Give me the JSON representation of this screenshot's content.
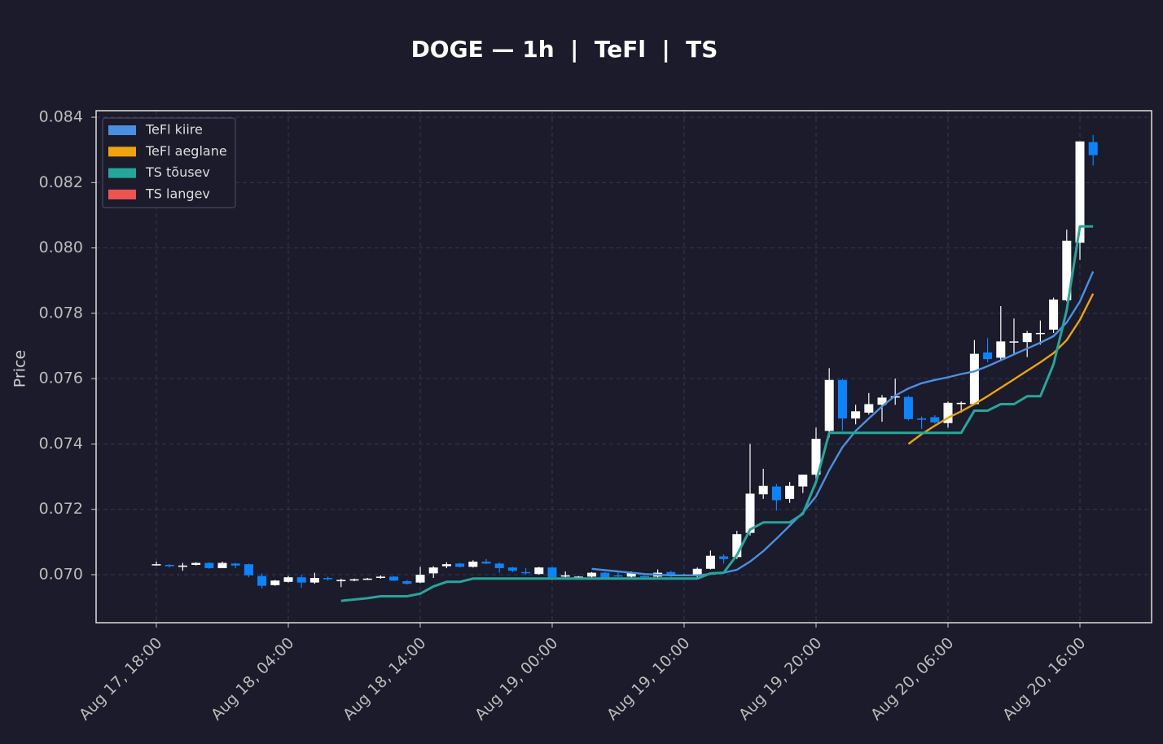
{
  "chart_data": {
    "type": "candlestick",
    "title": "DOGE — 1h  |  TeFl  |  TS",
    "y_label": "Price",
    "x": [
      "Aug 17, 18:00",
      "Aug 17, 19:00",
      "Aug 17, 20:00",
      "Aug 17, 21:00",
      "Aug 17, 22:00",
      "Aug 17, 23:00",
      "Aug 18, 00:00",
      "Aug 18, 01:00",
      "Aug 18, 02:00",
      "Aug 18, 03:00",
      "Aug 18, 04:00",
      "Aug 18, 05:00",
      "Aug 18, 06:00",
      "Aug 18, 07:00",
      "Aug 18, 08:00",
      "Aug 18, 09:00",
      "Aug 18, 10:00",
      "Aug 18, 11:00",
      "Aug 18, 12:00",
      "Aug 18, 13:00",
      "Aug 18, 14:00",
      "Aug 18, 15:00",
      "Aug 18, 16:00",
      "Aug 18, 17:00",
      "Aug 18, 18:00",
      "Aug 18, 19:00",
      "Aug 18, 20:00",
      "Aug 18, 21:00",
      "Aug 18, 22:00",
      "Aug 18, 23:00",
      "Aug 19, 00:00",
      "Aug 19, 01:00",
      "Aug 19, 02:00",
      "Aug 19, 03:00",
      "Aug 19, 04:00",
      "Aug 19, 05:00",
      "Aug 19, 06:00",
      "Aug 19, 07:00",
      "Aug 19, 08:00",
      "Aug 19, 09:00",
      "Aug 19, 10:00",
      "Aug 19, 11:00",
      "Aug 19, 12:00",
      "Aug 19, 13:00",
      "Aug 19, 14:00",
      "Aug 19, 15:00",
      "Aug 19, 16:00",
      "Aug 19, 17:00",
      "Aug 19, 18:00",
      "Aug 19, 19:00",
      "Aug 19, 20:00",
      "Aug 19, 21:00",
      "Aug 19, 22:00",
      "Aug 19, 23:00",
      "Aug 20, 00:00",
      "Aug 20, 01:00",
      "Aug 20, 02:00",
      "Aug 20, 03:00",
      "Aug 20, 04:00",
      "Aug 20, 05:00",
      "Aug 20, 06:00",
      "Aug 20, 07:00",
      "Aug 20, 08:00",
      "Aug 20, 09:00",
      "Aug 20, 10:00",
      "Aug 20, 11:00",
      "Aug 20, 12:00",
      "Aug 20, 13:00",
      "Aug 20, 14:00",
      "Aug 20, 15:00",
      "Aug 20, 16:00",
      "Aug 20, 17:00"
    ],
    "open": [
      0.0703,
      0.0703,
      0.07024,
      0.0703,
      0.07036,
      0.0702,
      0.07034,
      0.07032,
      0.06996,
      0.06968,
      0.06978,
      0.06992,
      0.06976,
      0.0699,
      0.0698,
      0.06982,
      0.06986,
      0.0699,
      0.06994,
      0.0698,
      0.06976,
      0.07004,
      0.07026,
      0.07034,
      0.07024,
      0.0704,
      0.07034,
      0.07022,
      0.07008,
      0.07002,
      0.07022,
      0.06994,
      0.06992,
      0.06994,
      0.07006,
      0.06998,
      0.06994,
      0.06996,
      0.06994,
      0.07008,
      0.06998,
      0.06996,
      0.07018,
      0.07056,
      0.07054,
      0.07128,
      0.07246,
      0.0727,
      0.07232,
      0.0727,
      0.07306,
      0.0744,
      0.07596,
      0.07478,
      0.07496,
      0.0752,
      0.07542,
      0.07544,
      0.07478,
      0.07482,
      0.07464,
      0.07522,
      0.07522,
      0.0768,
      0.07664,
      0.07712,
      0.07712,
      0.07738,
      0.0775,
      0.0784,
      0.08016,
      0.08324
    ],
    "high": [
      0.0704,
      0.07032,
      0.07036,
      0.07038,
      0.07038,
      0.0704,
      0.07036,
      0.07034,
      0.07004,
      0.06984,
      0.06996,
      0.07,
      0.07006,
      0.06994,
      0.06988,
      0.06988,
      0.0699,
      0.06998,
      0.06996,
      0.06984,
      0.07024,
      0.07026,
      0.07038,
      0.07036,
      0.07044,
      0.07048,
      0.07038,
      0.07024,
      0.0702,
      0.07024,
      0.07024,
      0.0701,
      0.06996,
      0.07008,
      0.07008,
      0.0701,
      0.0701,
      0.06998,
      0.07016,
      0.07012,
      0.07002,
      0.07022,
      0.07074,
      0.07062,
      0.07134,
      0.074,
      0.07324,
      0.07278,
      0.07284,
      0.07306,
      0.0745,
      0.07632,
      0.076,
      0.0752,
      0.07556,
      0.0755,
      0.076,
      0.07548,
      0.07484,
      0.07488,
      0.0753,
      0.0753,
      0.07718,
      0.07724,
      0.07822,
      0.07784,
      0.07746,
      0.07778,
      0.07848,
      0.08056,
      0.08326,
      0.08346
    ],
    "low": [
      0.07028,
      0.07022,
      0.07012,
      0.07028,
      0.07018,
      0.0702,
      0.0702,
      0.06992,
      0.06958,
      0.06966,
      0.06976,
      0.0696,
      0.06972,
      0.06982,
      0.06962,
      0.0698,
      0.06984,
      0.06988,
      0.0698,
      0.0697,
      0.06974,
      0.0699,
      0.0702,
      0.07022,
      0.07022,
      0.07032,
      0.07006,
      0.07008,
      0.07,
      0.07,
      0.0699,
      0.0699,
      0.0699,
      0.0699,
      0.06988,
      0.0699,
      0.0699,
      0.06992,
      0.0699,
      0.06992,
      0.06996,
      0.0699,
      0.07016,
      0.07034,
      0.07048,
      0.0712,
      0.07232,
      0.07196,
      0.0722,
      0.0725,
      0.07292,
      0.0742,
      0.0744,
      0.0746,
      0.0749,
      0.07468,
      0.0752,
      0.07472,
      0.07446,
      0.07462,
      0.0745,
      0.07496,
      0.0752,
      0.0765,
      0.07654,
      0.07672,
      0.07666,
      0.07704,
      0.0774,
      0.07836,
      0.07964,
      0.08252
    ],
    "close": [
      0.07032,
      0.07026,
      0.07028,
      0.07036,
      0.0702,
      0.07036,
      0.07028,
      0.06998,
      0.06966,
      0.06982,
      0.06992,
      0.06976,
      0.0699,
      0.06986,
      0.06984,
      0.06986,
      0.06988,
      0.06994,
      0.06982,
      0.06972,
      0.07,
      0.07022,
      0.07032,
      0.07024,
      0.0704,
      0.07034,
      0.0702,
      0.07012,
      0.07006,
      0.07022,
      0.06992,
      0.06998,
      0.06994,
      0.07006,
      0.0699,
      0.06996,
      0.07006,
      0.06994,
      0.07006,
      0.06996,
      0.07,
      0.07018,
      0.07058,
      0.07048,
      0.07124,
      0.07248,
      0.07272,
      0.07228,
      0.07272,
      0.07306,
      0.07416,
      0.07596,
      0.07478,
      0.075,
      0.07522,
      0.07542,
      0.07546,
      0.07476,
      0.07474,
      0.07466,
      0.07526,
      0.07526,
      0.07676,
      0.0766,
      0.07714,
      0.07714,
      0.0774,
      0.0774,
      0.07842,
      0.08022,
      0.08326,
      0.08284
    ],
    "up_color": "#ffffff",
    "down_color": "#0a84ff",
    "series": [
      {
        "name": "TeFl kiire",
        "color": "#4a90e2",
        "values": [
          null,
          null,
          null,
          null,
          null,
          null,
          null,
          null,
          null,
          null,
          null,
          null,
          null,
          null,
          null,
          null,
          null,
          null,
          null,
          null,
          null,
          null,
          null,
          null,
          null,
          null,
          null,
          null,
          null,
          null,
          null,
          null,
          null,
          0.07018,
          0.07014,
          0.0701,
          0.07006,
          0.07002,
          0.07,
          0.06998,
          0.06998,
          0.06998,
          0.07002,
          0.07006,
          0.07015,
          0.0704,
          0.07072,
          0.0711,
          0.0715,
          0.0719,
          0.0724,
          0.0732,
          0.0739,
          0.0744,
          0.07478,
          0.07515,
          0.07548,
          0.0757,
          0.07586,
          0.07596,
          0.07604,
          0.07614,
          0.07622,
          0.07638,
          0.07656,
          0.07674,
          0.07692,
          0.0771,
          0.0773,
          0.07772,
          0.07836,
          0.07928
        ]
      },
      {
        "name": "TeFl aeglane",
        "color": "#f0a30a",
        "values": [
          null,
          null,
          null,
          null,
          null,
          null,
          null,
          null,
          null,
          null,
          null,
          null,
          null,
          null,
          null,
          null,
          null,
          null,
          null,
          null,
          null,
          null,
          null,
          null,
          null,
          null,
          null,
          null,
          null,
          null,
          null,
          null,
          null,
          null,
          null,
          null,
          null,
          null,
          null,
          null,
          null,
          null,
          null,
          null,
          null,
          null,
          null,
          null,
          null,
          null,
          null,
          null,
          null,
          null,
          null,
          null,
          null,
          0.074,
          0.0743,
          0.07456,
          0.0748,
          0.075,
          0.07522,
          0.07546,
          0.07572,
          0.07598,
          0.07624,
          0.0765,
          0.07678,
          0.07718,
          0.0778,
          0.0786
        ]
      },
      {
        "name": "TS tõusev",
        "color": "#26a69a",
        "values": [
          null,
          null,
          null,
          null,
          null,
          null,
          null,
          null,
          null,
          null,
          null,
          null,
          null,
          null,
          0.0692,
          0.06924,
          0.06928,
          0.06934,
          0.06934,
          0.06934,
          0.06942,
          0.06964,
          0.06978,
          0.06978,
          0.06988,
          0.06988,
          0.06988,
          0.06988,
          0.06988,
          0.06988,
          0.06988,
          0.06988,
          0.06988,
          0.06988,
          0.06988,
          0.06988,
          0.06988,
          0.06988,
          0.06988,
          0.06988,
          0.06988,
          0.06988,
          0.07004,
          0.07006,
          0.0706,
          0.07138,
          0.0716,
          0.0716,
          0.0716,
          0.07186,
          0.07284,
          0.07434,
          0.07434,
          0.07434,
          0.07434,
          0.07434,
          0.07434,
          0.07434,
          0.07434,
          0.07434,
          0.07434,
          0.07434,
          0.07502,
          0.07502,
          0.07522,
          0.07522,
          0.07546,
          0.07546,
          0.07644,
          0.0781,
          0.08066,
          0.08066
        ]
      },
      {
        "name": "TS langev",
        "color": "#ef5350",
        "values": [
          null,
          null,
          null,
          null,
          null,
          null,
          null,
          null,
          null,
          null,
          null,
          null,
          null,
          null,
          null,
          null,
          null,
          null,
          null,
          null,
          null,
          null,
          null,
          null,
          null,
          null,
          null,
          null,
          null,
          null,
          null,
          null,
          null,
          null,
          null,
          null,
          null,
          null,
          null,
          null,
          null,
          null,
          null,
          null,
          null,
          null,
          null,
          null,
          null,
          null,
          null,
          null,
          null,
          null,
          null,
          null,
          null,
          null,
          null,
          null,
          null,
          null,
          null,
          null,
          null,
          null,
          null,
          null,
          null,
          null,
          null,
          null
        ]
      }
    ],
    "ylim": [
      0.06853,
      0.0842
    ],
    "yticks": [
      {
        "value": 0.07,
        "label": "0.070"
      },
      {
        "value": 0.072,
        "label": "0.072"
      },
      {
        "value": 0.074,
        "label": "0.074"
      },
      {
        "value": 0.076,
        "label": "0.076"
      },
      {
        "value": 0.078,
        "label": "0.078"
      },
      {
        "value": 0.08,
        "label": "0.080"
      },
      {
        "value": 0.082,
        "label": "0.082"
      },
      {
        "value": 0.084,
        "label": "0.084"
      }
    ],
    "xticks": [
      "Aug 17, 18:00",
      "Aug 18, 04:00",
      "Aug 18, 14:00",
      "Aug 19, 00:00",
      "Aug 19, 10:00",
      "Aug 19, 20:00",
      "Aug 20, 06:00",
      "Aug 20, 16:00"
    ],
    "grid": true,
    "legend": "upper left"
  }
}
